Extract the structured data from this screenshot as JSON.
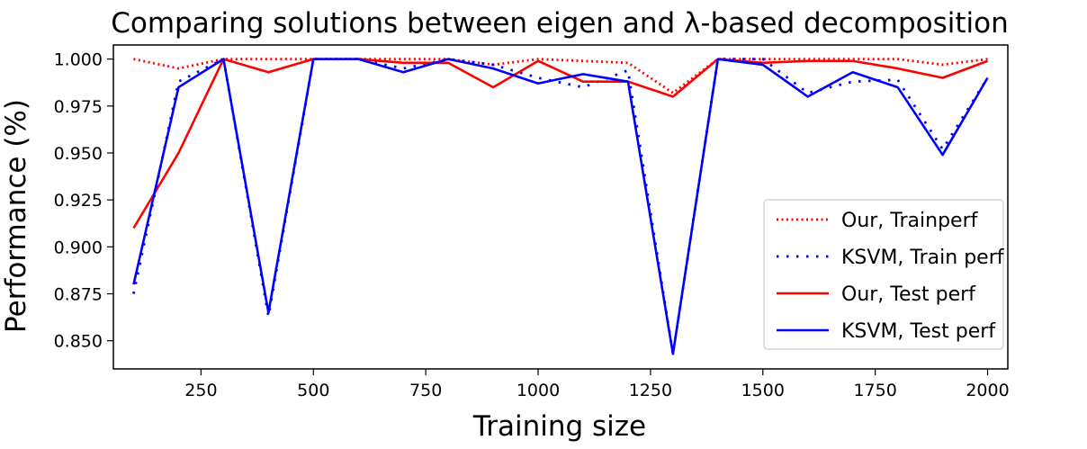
{
  "chart_data": {
    "type": "line",
    "title": "Comparing solutions between eigen and λ-based decomposition",
    "xlabel": "Training size",
    "ylabel": "Performance (%)",
    "xlim": [
      55,
      2045
    ],
    "ylim": [
      0.835,
      1.0075
    ],
    "xticks": [
      250,
      500,
      750,
      1000,
      1250,
      1500,
      1750,
      2000
    ],
    "yticks": [
      0.85,
      0.875,
      0.9,
      0.925,
      0.95,
      0.975,
      1.0
    ],
    "xtick_labels": [
      "250",
      "500",
      "750",
      "1000",
      "1250",
      "1500",
      "1750",
      "2000"
    ],
    "ytick_labels": [
      "0.850",
      "0.875",
      "0.900",
      "0.925",
      "0.950",
      "0.975",
      "1.000"
    ],
    "grid": false,
    "legend_position": "center-right",
    "x": [
      100,
      200,
      300,
      400,
      500,
      600,
      700,
      800,
      900,
      1000,
      1100,
      1200,
      1300,
      1400,
      1500,
      1600,
      1700,
      1800,
      1900,
      2000
    ],
    "series": [
      {
        "name": "Our, Trainperf",
        "color": "#ff0000",
        "dash": "dotted",
        "values": [
          1.0,
          0.995,
          1.0,
          1.0,
          1.0,
          1.0,
          1.0,
          1.0,
          0.997,
          1.0,
          0.999,
          0.998,
          0.982,
          1.0,
          1.0,
          1.0,
          1.0,
          1.0,
          0.997,
          1.0
        ]
      },
      {
        "name": "KSVM, Train perf",
        "color": "#0000ff",
        "dash": "dotted-wide",
        "values": [
          0.875,
          0.988,
          1.0,
          0.863,
          1.0,
          1.0,
          0.995,
          1.0,
          0.997,
          0.99,
          0.985,
          0.994,
          0.843,
          1.0,
          1.0,
          0.982,
          0.988,
          0.989,
          0.952,
          0.99
        ]
      },
      {
        "name": "Our, Test perf",
        "color": "#ff0000",
        "dash": "solid",
        "values": [
          0.91,
          0.95,
          1.0,
          0.993,
          1.0,
          1.0,
          0.998,
          0.998,
          0.985,
          0.999,
          0.988,
          0.988,
          0.98,
          1.0,
          0.998,
          0.999,
          0.999,
          0.995,
          0.99,
          0.999
        ]
      },
      {
        "name": "KSVM, Test perf",
        "color": "#0000ff",
        "dash": "solid",
        "values": [
          0.88,
          0.985,
          1.0,
          0.865,
          1.0,
          1.0,
          0.993,
          1.0,
          0.995,
          0.987,
          0.992,
          0.988,
          0.843,
          1.0,
          0.997,
          0.98,
          0.993,
          0.985,
          0.949,
          0.99
        ]
      }
    ]
  }
}
